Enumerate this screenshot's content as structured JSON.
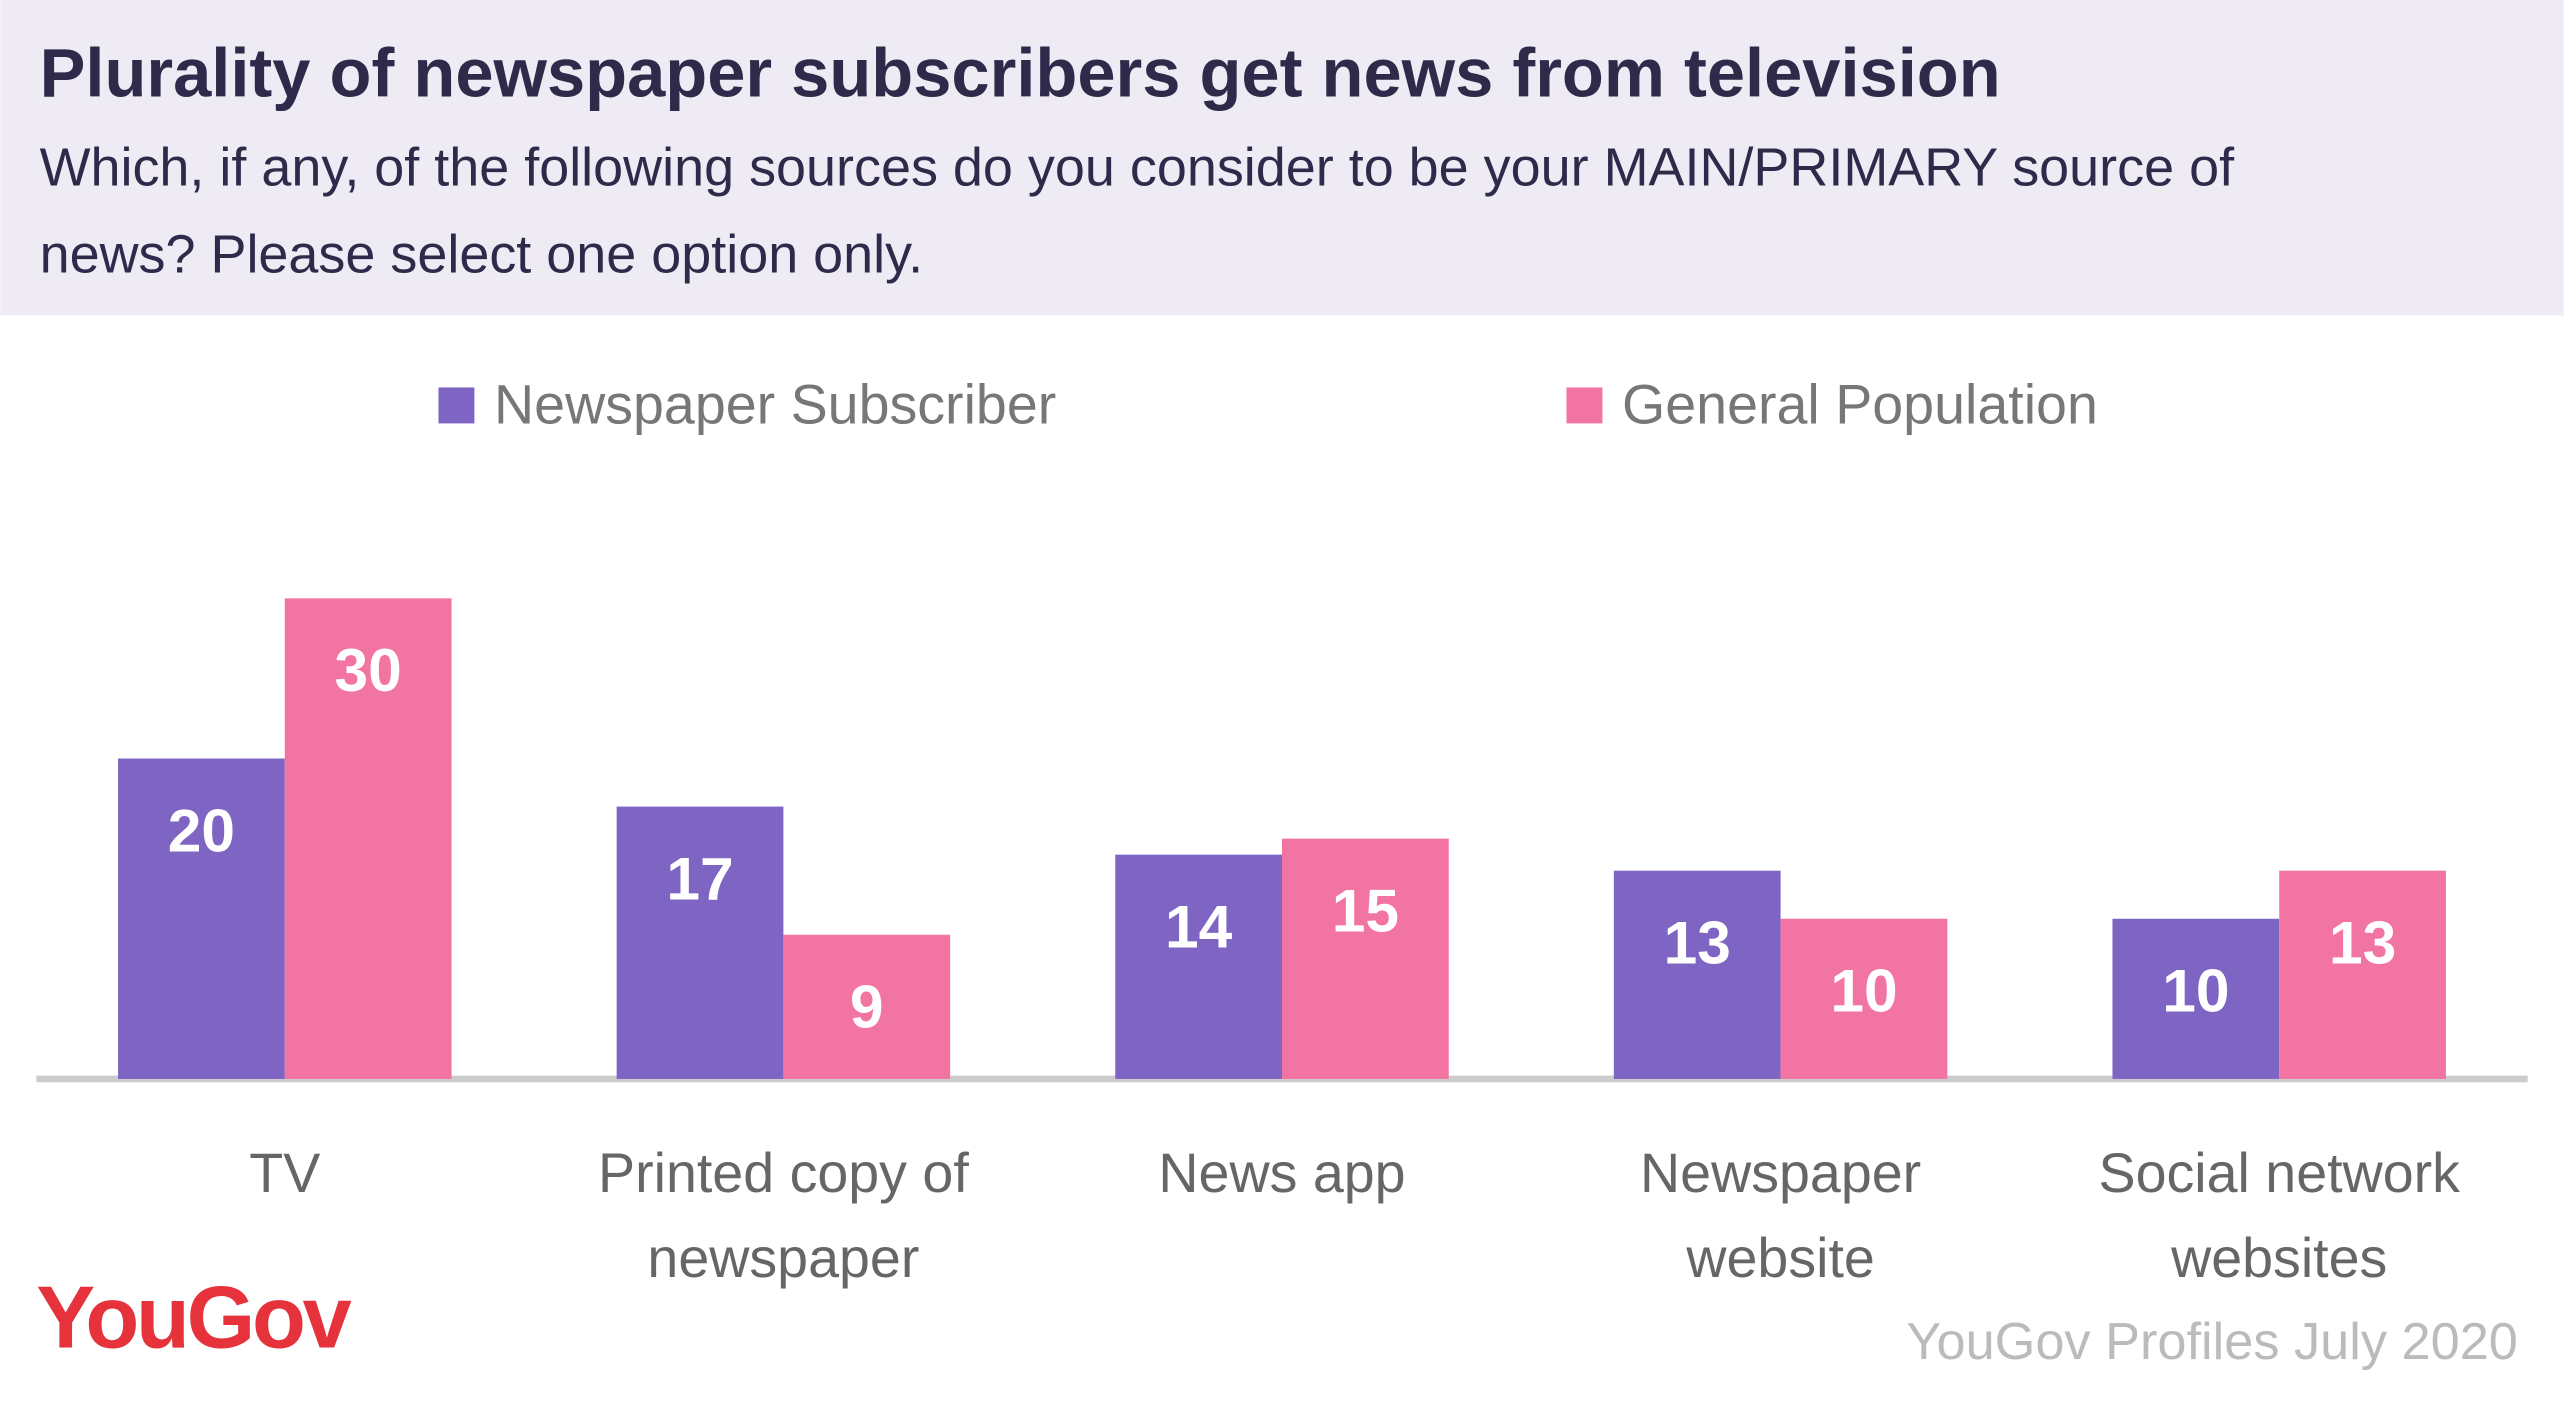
{
  "chart_data": {
    "type": "bar",
    "title": "Plurality of newspaper subscribers get news from television",
    "subtitle": "Which, if any, of the following sources do you consider to be your MAIN/PRIMARY source of news? Please select one option only.",
    "categories": [
      "TV",
      "Printed copy of newspaper",
      "News app",
      "Newspaper website",
      "Social network websites"
    ],
    "series": [
      {
        "name": "Newspaper Subscriber",
        "color": "#7e65c4",
        "values": [
          20,
          17,
          14,
          13,
          10
        ]
      },
      {
        "name": "General Population",
        "color": "#f274a2",
        "values": [
          30,
          9,
          15,
          10,
          13
        ]
      }
    ],
    "source": "YouGov Profiles July 2020",
    "logo": "YouGov"
  }
}
